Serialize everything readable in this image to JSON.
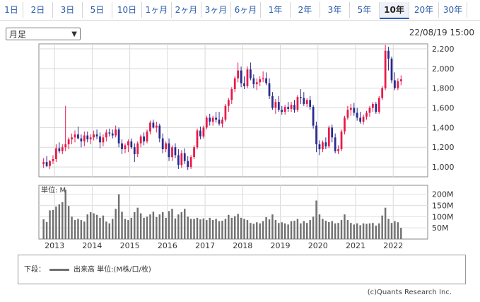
{
  "tabs": [
    {
      "label": "1日"
    },
    {
      "label": "2日"
    },
    {
      "label": "3日"
    },
    {
      "label": "5日"
    },
    {
      "label": "10日"
    },
    {
      "label": "1ヶ月"
    },
    {
      "label": "2ヶ月"
    },
    {
      "label": "3ヶ月"
    },
    {
      "label": "6ヶ月"
    },
    {
      "label": "1年"
    },
    {
      "label": "2年"
    },
    {
      "label": "3年"
    },
    {
      "label": "5年"
    },
    {
      "label": "10年",
      "active": true
    },
    {
      "label": "20年"
    },
    {
      "label": "30年"
    }
  ],
  "select": {
    "value": "月足"
  },
  "datetime": "22/08/19 15:00",
  "chart_data": [
    {
      "type": "candlestick",
      "title": "",
      "ylim": [
        900,
        2250
      ],
      "y_ticks": [
        "1,000",
        "1,200",
        "1,400",
        "1,600",
        "1,800",
        "2,000",
        "2,200"
      ],
      "x_ticks": [
        "2013",
        "2014",
        "2015",
        "2016",
        "2017",
        "2018",
        "2019",
        "2020",
        "2021",
        "2022"
      ],
      "colors": {
        "up": "#e8194a",
        "down": "#2a2a8f"
      },
      "x_start": "2012-09",
      "interval": "month",
      "ohlc": [
        [
          1030,
          1090,
          990,
          1050
        ],
        [
          1050,
          1110,
          1000,
          1010
        ],
        [
          1010,
          1070,
          980,
          1060
        ],
        [
          1060,
          1120,
          1030,
          1080
        ],
        [
          1080,
          1230,
          1050,
          1190
        ],
        [
          1190,
          1250,
          1140,
          1160
        ],
        [
          1160,
          1230,
          1130,
          1200
        ],
        [
          1200,
          1620,
          1160,
          1230
        ],
        [
          1230,
          1300,
          1180,
          1280
        ],
        [
          1280,
          1340,
          1230,
          1300
        ],
        [
          1300,
          1370,
          1250,
          1330
        ],
        [
          1330,
          1410,
          1280,
          1290
        ],
        [
          1290,
          1330,
          1200,
          1260
        ],
        [
          1260,
          1360,
          1210,
          1320
        ],
        [
          1320,
          1360,
          1250,
          1280
        ],
        [
          1280,
          1330,
          1230,
          1300
        ],
        [
          1300,
          1370,
          1270,
          1330
        ],
        [
          1330,
          1380,
          1280,
          1310
        ],
        [
          1310,
          1350,
          1190,
          1250
        ],
        [
          1250,
          1330,
          1210,
          1300
        ],
        [
          1300,
          1380,
          1260,
          1350
        ],
        [
          1350,
          1390,
          1310,
          1340
        ],
        [
          1340,
          1380,
          1290,
          1320
        ],
        [
          1320,
          1420,
          1300,
          1380
        ],
        [
          1380,
          1400,
          1200,
          1240
        ],
        [
          1240,
          1280,
          1130,
          1180
        ],
        [
          1180,
          1240,
          1140,
          1220
        ],
        [
          1220,
          1280,
          1150,
          1260
        ],
        [
          1260,
          1290,
          1180,
          1200
        ],
        [
          1200,
          1240,
          1050,
          1130
        ],
        [
          1130,
          1260,
          1100,
          1240
        ],
        [
          1240,
          1330,
          1200,
          1310
        ],
        [
          1310,
          1350,
          1220,
          1260
        ],
        [
          1260,
          1380,
          1240,
          1360
        ],
        [
          1360,
          1470,
          1330,
          1450
        ],
        [
          1450,
          1480,
          1390,
          1400
        ],
        [
          1400,
          1460,
          1350,
          1420
        ],
        [
          1420,
          1440,
          1250,
          1290
        ],
        [
          1290,
          1340,
          1140,
          1180
        ],
        [
          1180,
          1260,
          1150,
          1240
        ],
        [
          1240,
          1290,
          1060,
          1100
        ],
        [
          1100,
          1220,
          1060,
          1200
        ],
        [
          1200,
          1240,
          1090,
          1120
        ],
        [
          1120,
          1180,
          980,
          1020
        ],
        [
          1020,
          1170,
          990,
          1140
        ],
        [
          1140,
          1190,
          1030,
          1060
        ],
        [
          1060,
          1110,
          970,
          1000
        ],
        [
          1000,
          1120,
          980,
          1100
        ],
        [
          1100,
          1220,
          1080,
          1200
        ],
        [
          1200,
          1390,
          1180,
          1370
        ],
        [
          1370,
          1410,
          1280,
          1310
        ],
        [
          1310,
          1420,
          1290,
          1400
        ],
        [
          1400,
          1520,
          1380,
          1500
        ],
        [
          1500,
          1540,
          1420,
          1460
        ],
        [
          1460,
          1520,
          1420,
          1500
        ],
        [
          1500,
          1560,
          1450,
          1480
        ],
        [
          1480,
          1560,
          1420,
          1440
        ],
        [
          1440,
          1510,
          1400,
          1480
        ],
        [
          1480,
          1640,
          1460,
          1620
        ],
        [
          1620,
          1700,
          1560,
          1680
        ],
        [
          1680,
          1810,
          1640,
          1790
        ],
        [
          1790,
          1920,
          1760,
          1900
        ],
        [
          1900,
          2060,
          1860,
          1980
        ],
        [
          1980,
          2020,
          1810,
          1850
        ],
        [
          1850,
          1920,
          1790,
          1820
        ],
        [
          1820,
          2020,
          1800,
          1990
        ],
        [
          1990,
          2060,
          1880,
          1900
        ],
        [
          1900,
          1940,
          1800,
          1840
        ],
        [
          1840,
          1900,
          1780,
          1860
        ],
        [
          1860,
          1920,
          1820,
          1890
        ],
        [
          1890,
          1970,
          1860,
          1900
        ],
        [
          1900,
          1960,
          1830,
          1850
        ],
        [
          1850,
          1900,
          1690,
          1720
        ],
        [
          1720,
          1760,
          1580,
          1600
        ],
        [
          1600,
          1690,
          1540,
          1660
        ],
        [
          1660,
          1720,
          1560,
          1580
        ],
        [
          1580,
          1620,
          1530,
          1560
        ],
        [
          1560,
          1630,
          1530,
          1610
        ],
        [
          1610,
          1660,
          1560,
          1590
        ],
        [
          1590,
          1660,
          1560,
          1630
        ],
        [
          1630,
          1680,
          1550,
          1580
        ],
        [
          1580,
          1730,
          1560,
          1710
        ],
        [
          1710,
          1790,
          1640,
          1700
        ],
        [
          1700,
          1760,
          1620,
          1640
        ],
        [
          1640,
          1700,
          1610,
          1680
        ],
        [
          1680,
          1720,
          1580,
          1610
        ],
        [
          1610,
          1630,
          1390,
          1420
        ],
        [
          1420,
          1460,
          1150,
          1230
        ],
        [
          1230,
          1270,
          1120,
          1180
        ],
        [
          1180,
          1270,
          1150,
          1250
        ],
        [
          1250,
          1300,
          1180,
          1210
        ],
        [
          1210,
          1420,
          1190,
          1400
        ],
        [
          1400,
          1430,
          1250,
          1300
        ],
        [
          1300,
          1340,
          1140,
          1160
        ],
        [
          1160,
          1220,
          1130,
          1180
        ],
        [
          1180,
          1380,
          1160,
          1360
        ],
        [
          1360,
          1520,
          1330,
          1500
        ],
        [
          1500,
          1620,
          1480,
          1580
        ],
        [
          1580,
          1640,
          1520,
          1600
        ],
        [
          1600,
          1650,
          1520,
          1550
        ],
        [
          1550,
          1600,
          1470,
          1500
        ],
        [
          1500,
          1560,
          1440,
          1460
        ],
        [
          1460,
          1530,
          1430,
          1510
        ],
        [
          1510,
          1570,
          1480,
          1550
        ],
        [
          1550,
          1620,
          1510,
          1600
        ],
        [
          1600,
          1660,
          1560,
          1640
        ],
        [
          1640,
          1660,
          1540,
          1560
        ],
        [
          1560,
          1720,
          1540,
          1700
        ],
        [
          1700,
          1820,
          1680,
          1800
        ],
        [
          1800,
          2240,
          1780,
          2180
        ],
        [
          2180,
          2220,
          1980,
          2100
        ],
        [
          2100,
          2120,
          1850,
          1880
        ],
        [
          1880,
          1960,
          1780,
          1800
        ],
        [
          1800,
          1900,
          1780,
          1870
        ],
        [
          1870,
          1930,
          1830,
          1890
        ]
      ]
    },
    {
      "type": "bar",
      "unit_label": "単位: M",
      "ylim": [
        0,
        240
      ],
      "y_ticks": [
        {
          "value": 200,
          "label": "200M"
        },
        {
          "value": 150,
          "label": "150M"
        },
        {
          "value": 100,
          "label": "100M"
        },
        {
          "value": 50,
          "label": "50M"
        }
      ],
      "color": "#707070",
      "values": [
        88,
        76,
        128,
        130,
        145,
        155,
        165,
        220,
        148,
        100,
        85,
        90,
        85,
        78,
        110,
        120,
        115,
        108,
        95,
        105,
        78,
        70,
        90,
        135,
        200,
        122,
        90,
        85,
        95,
        120,
        140,
        115,
        95,
        100,
        110,
        122,
        98,
        110,
        120,
        95,
        125,
        135,
        92,
        110,
        120,
        135,
        100,
        90,
        90,
        95,
        88,
        92,
        85,
        95,
        85,
        90,
        80,
        82,
        90,
        108,
        95,
        102,
        112,
        95,
        90,
        85,
        72,
        68,
        75,
        70,
        80,
        98,
        88,
        110,
        85,
        72,
        75,
        70,
        65,
        80,
        82,
        90,
        70,
        80,
        72,
        85,
        100,
        172,
        110,
        90,
        82,
        76,
        80,
        70,
        72,
        85,
        110,
        85,
        72,
        65,
        70,
        62,
        70,
        68,
        70,
        72,
        60,
        70,
        105,
        140,
        90,
        72,
        80,
        75,
        50
      ]
    }
  ],
  "legend": {
    "prefix": "下段：",
    "label": "出来高 単位:(M株/口/枚)"
  },
  "copyright": "(c)Quants Research Inc."
}
